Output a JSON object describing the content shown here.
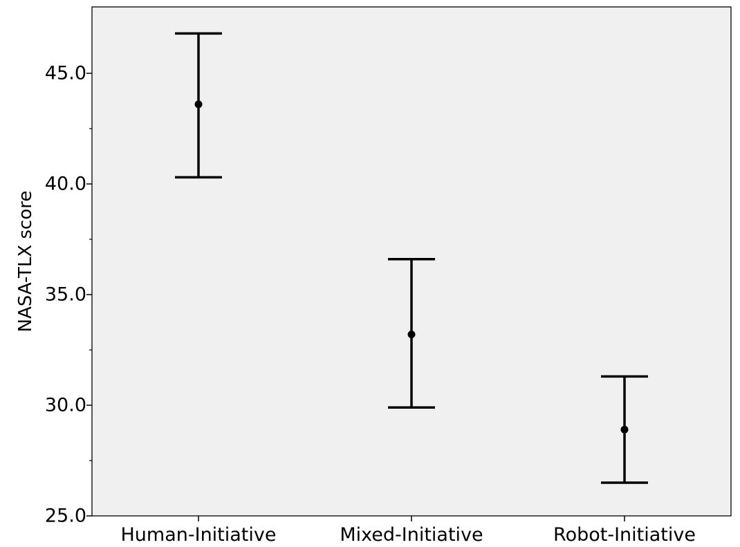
{
  "chart_data": {
    "type": "errorbar",
    "title": "",
    "xlabel": "",
    "ylabel": "NASA-TLX score",
    "ylim": [
      25,
      48
    ],
    "y_ticks": [
      "25.0",
      "30.0",
      "35.0",
      "40.0",
      "45.0"
    ],
    "y_minor_ticks": [
      27.5,
      32.5,
      37.5,
      42.5
    ],
    "grid": false,
    "legend": "none",
    "categories": [
      "Human-Initiative",
      "Mixed-Initiative",
      "Robot-Initiative"
    ],
    "means": [
      43.6,
      33.2,
      28.9
    ],
    "lower": [
      40.3,
      29.9,
      26.5
    ],
    "upper": [
      46.8,
      36.6,
      31.3
    ],
    "colors": {
      "plot_bg": "#f0f0f0",
      "ink": "#000000"
    }
  }
}
